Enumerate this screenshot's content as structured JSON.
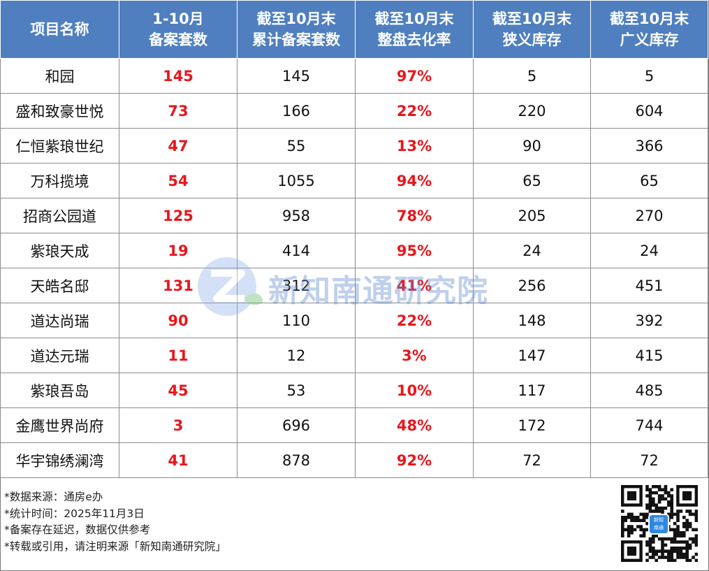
{
  "headers": [
    [
      "项目名称"
    ],
    [
      "1-10月",
      "备案套数"
    ],
    [
      "截至10月末",
      "累计备案套数"
    ],
    [
      "截至10月末",
      "整盘去化率"
    ],
    [
      "截至10月末",
      "狭义库存"
    ],
    [
      "截至10月末",
      "广义库存"
    ]
  ],
  "rows": [
    [
      "和园",
      "145",
      "145",
      "97%",
      "5",
      "5"
    ],
    [
      "盛和致豪世悦",
      "73",
      "166",
      "22%",
      "220",
      "604"
    ],
    [
      "仁恒紫琅世纪",
      "47",
      "55",
      "13%",
      "90",
      "366"
    ],
    [
      "万科揽境",
      "54",
      "1055",
      "94%",
      "65",
      "65"
    ],
    [
      "招商公园道",
      "125",
      "958",
      "78%",
      "205",
      "270"
    ],
    [
      "紫琅天成",
      "19",
      "414",
      "95%",
      "24",
      "24"
    ],
    [
      "天皓名邸",
      "131",
      "312",
      "41%",
      "256",
      "451"
    ],
    [
      "道达尚瑞",
      "90",
      "110",
      "22%",
      "148",
      "392"
    ],
    [
      "道达元瑞",
      "11",
      "12",
      "3%",
      "147",
      "415"
    ],
    [
      "紫琅吾岛",
      "45",
      "53",
      "10%",
      "117",
      "485"
    ],
    [
      "金鹰世界尚府",
      "3",
      "696",
      "48%",
      "172",
      "744"
    ],
    [
      "华宇锦绣澜湾",
      "41",
      "878",
      "92%",
      "72",
      "72"
    ]
  ],
  "notes": [
    "*数据来源：通房e办",
    "*统计时间：2025年11月3日",
    "*备案存在延迟，数据仅供参考",
    "*转载或引用，请注明来源「新知南通研究院」"
  ],
  "watermark": {
    "text": "新知南通研究院"
  },
  "qr_badge": [
    "新知",
    "南通"
  ],
  "colors": {
    "header_bg": "#4f7fbf",
    "highlight": "#e8161c"
  }
}
